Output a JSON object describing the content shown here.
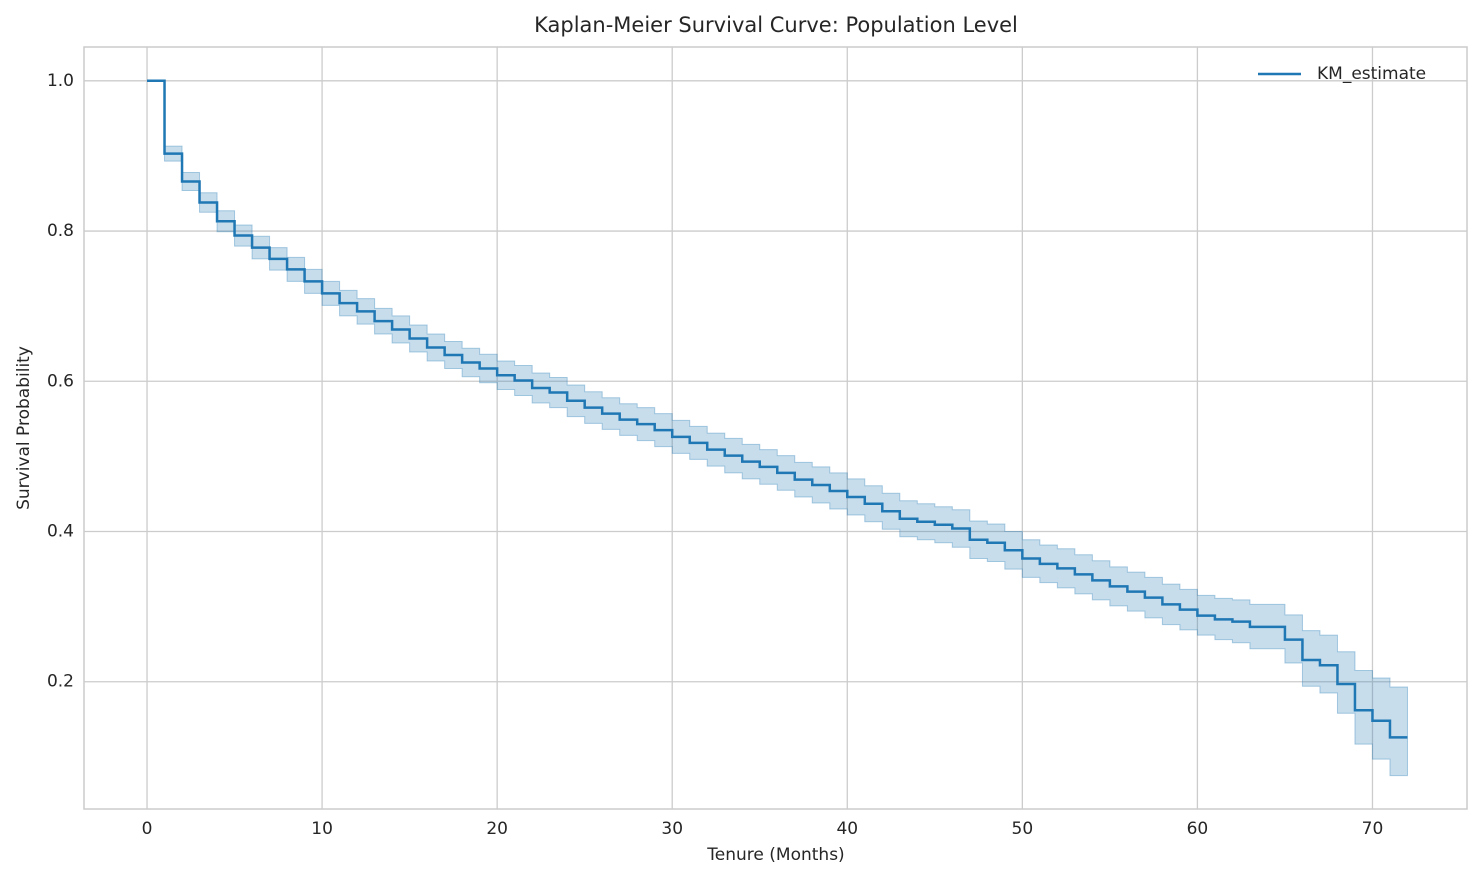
{
  "chart_data": {
    "type": "step",
    "title": "Kaplan-Meier Survival Curve: Population Level",
    "xlabel": "Tenure (Months)",
    "ylabel": "Survival Probability",
    "x": [
      0,
      1,
      2,
      3,
      4,
      5,
      6,
      7,
      8,
      9,
      10,
      11,
      12,
      13,
      14,
      15,
      16,
      17,
      18,
      19,
      20,
      21,
      22,
      23,
      24,
      25,
      26,
      27,
      28,
      29,
      30,
      31,
      32,
      33,
      34,
      35,
      36,
      37,
      38,
      39,
      40,
      41,
      42,
      43,
      44,
      45,
      46,
      47,
      48,
      49,
      50,
      51,
      52,
      53,
      54,
      55,
      56,
      57,
      58,
      59,
      60,
      61,
      62,
      63,
      64,
      65,
      66,
      67,
      68,
      69,
      70,
      71,
      72
    ],
    "series": [
      {
        "name": "KM_estimate",
        "color": "#1f77b4",
        "band_color": "#1f77b4",
        "values": [
          1,
          0.903,
          0.866,
          0.838,
          0.813,
          0.794,
          0.778,
          0.763,
          0.749,
          0.733,
          0.717,
          0.704,
          0.693,
          0.68,
          0.669,
          0.657,
          0.645,
          0.635,
          0.625,
          0.617,
          0.608,
          0.601,
          0.591,
          0.585,
          0.574,
          0.565,
          0.557,
          0.549,
          0.543,
          0.535,
          0.526,
          0.518,
          0.509,
          0.501,
          0.493,
          0.486,
          0.478,
          0.469,
          0.462,
          0.454,
          0.446,
          0.437,
          0.427,
          0.417,
          0.413,
          0.409,
          0.404,
          0.389,
          0.385,
          0.375,
          0.364,
          0.357,
          0.351,
          0.343,
          0.335,
          0.327,
          0.32,
          0.312,
          0.303,
          0.296,
          0.288,
          0.283,
          0.28,
          0.273,
          0.273,
          0.256,
          0.229,
          0.222,
          0.197,
          0.162,
          0.148,
          0.126,
          0.126
        ],
        "ci_lower": [
          1,
          0.893,
          0.854,
          0.825,
          0.799,
          0.78,
          0.763,
          0.748,
          0.733,
          0.717,
          0.701,
          0.687,
          0.676,
          0.663,
          0.651,
          0.639,
          0.627,
          0.617,
          0.606,
          0.598,
          0.589,
          0.581,
          0.571,
          0.565,
          0.553,
          0.544,
          0.536,
          0.528,
          0.521,
          0.513,
          0.504,
          0.496,
          0.487,
          0.478,
          0.47,
          0.463,
          0.455,
          0.446,
          0.438,
          0.43,
          0.422,
          0.413,
          0.403,
          0.393,
          0.389,
          0.385,
          0.379,
          0.364,
          0.36,
          0.35,
          0.339,
          0.332,
          0.325,
          0.317,
          0.309,
          0.301,
          0.294,
          0.285,
          0.276,
          0.269,
          0.262,
          0.256,
          0.252,
          0.244,
          0.244,
          0.225,
          0.194,
          0.185,
          0.158,
          0.117,
          0.097,
          0.075,
          0.075
        ],
        "ci_upper": [
          1,
          0.913,
          0.878,
          0.851,
          0.827,
          0.808,
          0.793,
          0.778,
          0.765,
          0.749,
          0.733,
          0.721,
          0.71,
          0.697,
          0.687,
          0.675,
          0.663,
          0.653,
          0.644,
          0.636,
          0.627,
          0.621,
          0.611,
          0.605,
          0.595,
          0.586,
          0.578,
          0.57,
          0.565,
          0.557,
          0.548,
          0.54,
          0.531,
          0.524,
          0.516,
          0.509,
          0.501,
          0.492,
          0.486,
          0.478,
          0.47,
          0.461,
          0.451,
          0.441,
          0.437,
          0.433,
          0.429,
          0.414,
          0.41,
          0.4,
          0.389,
          0.382,
          0.377,
          0.369,
          0.361,
          0.353,
          0.346,
          0.339,
          0.33,
          0.323,
          0.315,
          0.311,
          0.309,
          0.303,
          0.303,
          0.289,
          0.268,
          0.262,
          0.24,
          0.215,
          0.205,
          0.193,
          0.193
        ]
      }
    ],
    "xlim": [
      -3.6,
      75.4
    ],
    "xticks": [
      0,
      10,
      20,
      30,
      40,
      50,
      60,
      70
    ],
    "ylim": [
      0.0306,
      1.045
    ],
    "yticks": [
      0.2,
      0.4,
      0.6,
      0.8,
      {
        "value": 1,
        "label": "1.0"
      }
    ],
    "grid": true,
    "legend": "upper right"
  }
}
